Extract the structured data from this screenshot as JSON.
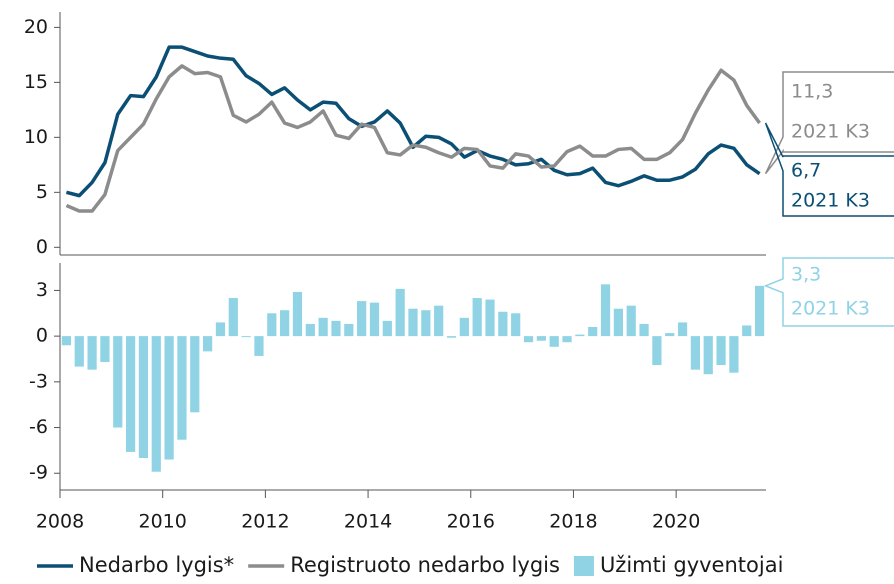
{
  "chart_data": [
    {
      "type": "line",
      "xlim": [
        2008,
        2021.75
      ],
      "ylim": [
        -0.7,
        21.4
      ],
      "yticks": [
        0,
        5,
        10,
        15,
        20
      ],
      "x": [
        2008.125,
        2008.375,
        2008.625,
        2008.875,
        2009.125,
        2009.375,
        2009.625,
        2009.875,
        2010.125,
        2010.375,
        2010.625,
        2010.875,
        2011.125,
        2011.375,
        2011.625,
        2011.875,
        2012.125,
        2012.375,
        2012.625,
        2012.875,
        2013.125,
        2013.375,
        2013.625,
        2013.875,
        2014.125,
        2014.375,
        2014.625,
        2014.875,
        2015.125,
        2015.375,
        2015.625,
        2015.875,
        2016.125,
        2016.375,
        2016.625,
        2016.875,
        2017.125,
        2017.375,
        2017.625,
        2017.875,
        2018.125,
        2018.375,
        2018.625,
        2018.875,
        2019.125,
        2019.375,
        2019.625,
        2019.875,
        2020.125,
        2020.375,
        2020.625,
        2020.875,
        2021.125,
        2021.375,
        2021.625
      ],
      "series": [
        {
          "name": "Nedarbo lygis*",
          "color": "#0b4f75",
          "values": [
            5.0,
            4.7,
            5.9,
            7.7,
            12.1,
            13.8,
            13.7,
            15.5,
            18.2,
            18.2,
            17.8,
            17.4,
            17.2,
            17.1,
            15.6,
            14.9,
            13.9,
            14.5,
            13.4,
            12.5,
            13.2,
            13.1,
            11.7,
            11.0,
            11.4,
            12.4,
            11.3,
            9.1,
            10.1,
            10.0,
            9.4,
            8.2,
            8.8,
            8.3,
            8.0,
            7.5,
            7.6,
            8.0,
            7.0,
            6.6,
            6.7,
            7.2,
            5.9,
            5.6,
            6.0,
            6.5,
            6.1,
            6.1,
            6.4,
            7.1,
            8.5,
            9.3,
            9.0,
            7.5,
            6.7
          ]
        },
        {
          "name": "Registruoto nedarbo lygis",
          "color": "#8c8c8c",
          "values": [
            3.8,
            3.3,
            3.3,
            4.8,
            8.8,
            10.0,
            11.2,
            13.5,
            15.5,
            16.5,
            15.8,
            15.9,
            15.5,
            12.0,
            11.4,
            12.1,
            13.2,
            11.3,
            10.9,
            11.4,
            12.4,
            10.2,
            9.9,
            11.2,
            10.9,
            8.6,
            8.4,
            9.3,
            9.1,
            8.6,
            8.2,
            9.0,
            8.9,
            7.4,
            7.2,
            8.5,
            8.3,
            7.3,
            7.4,
            8.7,
            9.2,
            8.3,
            8.3,
            8.9,
            9.0,
            8.0,
            8.0,
            8.6,
            9.8,
            12.2,
            14.3,
            16.1,
            15.2,
            12.9,
            11.3
          ]
        }
      ],
      "annotations": [
        {
          "lines": [
            "11,3",
            "2021 K3"
          ],
          "color": "#8c8c8c"
        },
        {
          "lines": [
            "6,7",
            "2021 K3"
          ],
          "color": "#0b4f75"
        }
      ]
    },
    {
      "type": "bar",
      "xlim": [
        2008,
        2021.75
      ],
      "ylim": [
        -10.1,
        4.8
      ],
      "yticks": [
        3,
        0,
        -3,
        -6,
        -9
      ],
      "xticks": [
        2008,
        2010,
        2012,
        2014,
        2016,
        2018,
        2020
      ],
      "x": [
        2008.125,
        2008.375,
        2008.625,
        2008.875,
        2009.125,
        2009.375,
        2009.625,
        2009.875,
        2010.125,
        2010.375,
        2010.625,
        2010.875,
        2011.125,
        2011.375,
        2011.625,
        2011.875,
        2012.125,
        2012.375,
        2012.625,
        2012.875,
        2013.125,
        2013.375,
        2013.625,
        2013.875,
        2014.125,
        2014.375,
        2014.625,
        2014.875,
        2015.125,
        2015.375,
        2015.625,
        2015.875,
        2016.125,
        2016.375,
        2016.625,
        2016.875,
        2017.125,
        2017.375,
        2017.625,
        2017.875,
        2018.125,
        2018.375,
        2018.625,
        2018.875,
        2019.125,
        2019.375,
        2019.625,
        2019.875,
        2020.125,
        2020.375,
        2020.625,
        2020.875,
        2021.125,
        2021.375,
        2021.625
      ],
      "series": [
        {
          "name": "Užimti gyventojai",
          "color": "#8fd3e4",
          "values": [
            -0.6,
            -2.0,
            -2.2,
            -1.7,
            -6.0,
            -7.6,
            -8.0,
            -8.9,
            -8.1,
            -6.8,
            -5.0,
            -1.0,
            0.9,
            2.5,
            0.0,
            -1.3,
            1.5,
            1.7,
            2.9,
            0.8,
            1.2,
            1.0,
            0.8,
            2.3,
            2.2,
            1.0,
            3.1,
            1.8,
            1.7,
            2.0,
            -0.1,
            1.2,
            2.5,
            2.4,
            1.6,
            1.5,
            -0.4,
            -0.3,
            -0.7,
            -0.4,
            0.1,
            0.6,
            3.4,
            1.8,
            2.0,
            0.8,
            -1.9,
            0.2,
            0.9,
            -2.2,
            -2.5,
            -1.9,
            -2.4,
            0.7,
            3.3
          ]
        }
      ],
      "annotations": [
        {
          "lines": [
            "3,3",
            "2021 K3"
          ],
          "color": "#8fd3e4"
        }
      ]
    }
  ]
}
